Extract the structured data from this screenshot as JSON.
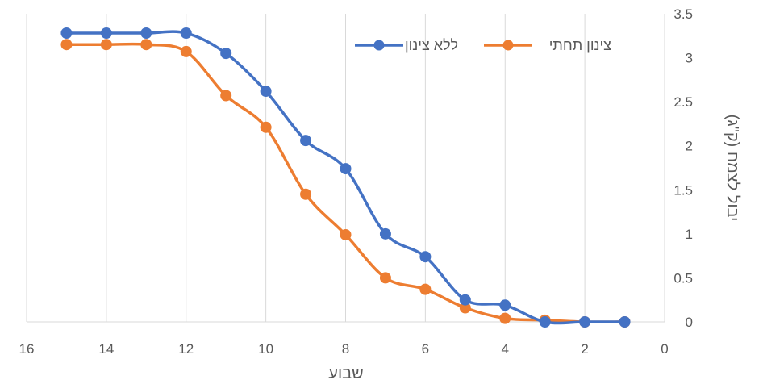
{
  "chart_data": {
    "type": "line",
    "xlabel": "שבוע",
    "ylabel": "יבול לצמח (ק\"ג)",
    "xlim": [
      0,
      16
    ],
    "ylim": [
      0,
      3.5
    ],
    "x_reversed": true,
    "y_axis_position": "right",
    "xticks": [
      16,
      14,
      12,
      10,
      8,
      6,
      4,
      2,
      0
    ],
    "yticks": [
      0,
      0.5,
      1,
      1.5,
      2,
      2.5,
      3,
      3.5
    ],
    "xtick_labels": [
      "16",
      "14",
      "12",
      "10",
      "8",
      "6",
      "4",
      "2",
      "0"
    ],
    "ytick_labels": [
      "0",
      "0.5",
      "1",
      "1.5",
      "2",
      "2.5",
      "3",
      "3.5"
    ],
    "grid": "vertical",
    "legend_position": "top-right",
    "smooth": true,
    "series": [
      {
        "name": "ללא צינון",
        "color": "#4472C4",
        "x": [
          15,
          14,
          13,
          12,
          11,
          10,
          9,
          8,
          7,
          6,
          5,
          4,
          3,
          2,
          1
        ],
        "y": [
          3.28,
          3.28,
          3.28,
          3.28,
          3.05,
          2.62,
          2.06,
          1.74,
          1.0,
          0.74,
          0.25,
          0.19,
          0.0,
          0.0,
          0.0
        ]
      },
      {
        "name": "צינון תחתי",
        "color": "#ED7D31",
        "x": [
          15,
          14,
          13,
          12,
          11,
          10,
          9,
          8,
          7,
          6,
          5,
          4,
          3,
          2,
          1
        ],
        "y": [
          3.15,
          3.15,
          3.15,
          3.07,
          2.57,
          2.21,
          1.45,
          0.99,
          0.5,
          0.37,
          0.16,
          0.04,
          0.02,
          0.0,
          0.0
        ]
      }
    ]
  }
}
